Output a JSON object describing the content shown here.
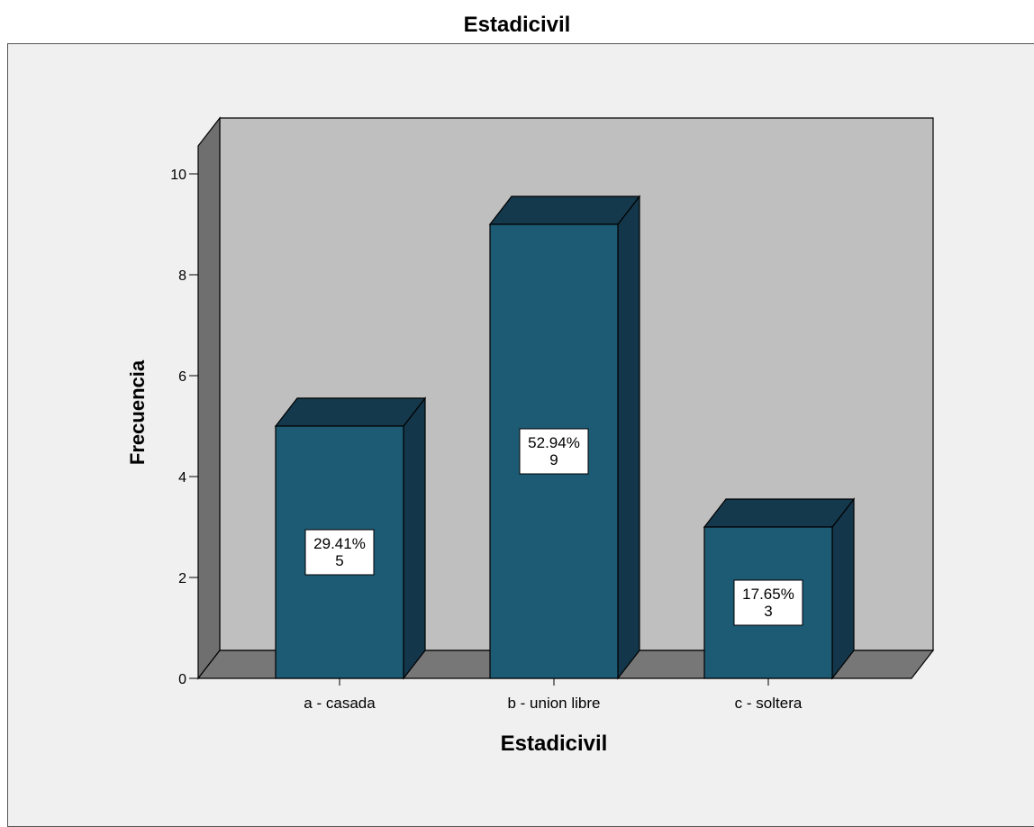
{
  "chart_data": {
    "type": "bar",
    "title": "Estadicivil",
    "xlabel": "Estadicivil",
    "ylabel": "Frecuencia",
    "categories": [
      "a - casada",
      "b - union libre",
      "c - soltera"
    ],
    "values": [
      5,
      9,
      3
    ],
    "percent_labels": [
      "29.41%",
      "52.94%",
      "17.65%"
    ],
    "count_labels": [
      "5",
      "9",
      "3"
    ],
    "yticks": [
      "0",
      "2",
      "4",
      "6",
      "8",
      "10"
    ],
    "ylim": [
      0,
      10
    ],
    "grid": false,
    "legend": "none",
    "style": "3d",
    "colors": {
      "bar_front": "#1d5a74",
      "bar_side": "#14364a",
      "bar_top": "#15394c",
      "back_wall": "#bfbfbf",
      "side_wall": "#6f6f6f",
      "floor": "#777777",
      "frame_bg": "#f0f0f0"
    }
  }
}
